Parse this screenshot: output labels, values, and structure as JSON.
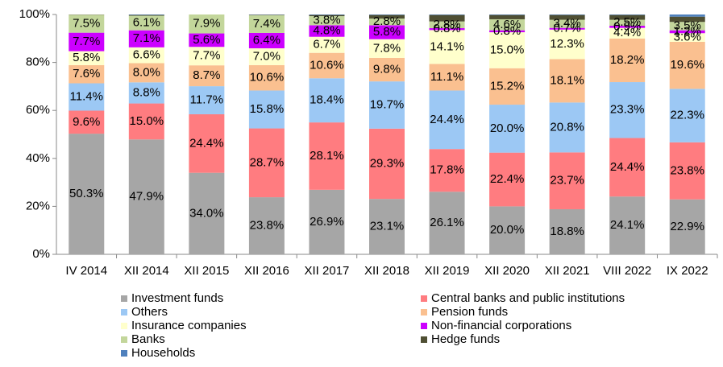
{
  "chart_data": {
    "type": "stacked_bar",
    "categories": [
      "IV 2014",
      "XII 2014",
      "XII 2015",
      "XII 2016",
      "XII 2017",
      "XII 2018",
      "XII 2019",
      "XII 2020",
      "XII 2021",
      "VIII 2022",
      "IX 2022"
    ],
    "ylim": [
      0,
      100
    ],
    "yticks": [
      {
        "value": 0,
        "label": "0%"
      },
      {
        "value": 20,
        "label": "20%"
      },
      {
        "value": 40,
        "label": "40%"
      },
      {
        "value": 60,
        "label": "60%"
      },
      {
        "value": 80,
        "label": "80%"
      },
      {
        "value": 100,
        "label": "100%"
      }
    ],
    "series": [
      {
        "name": "Investment funds",
        "color": "#a6a6a6",
        "values": [
          50.3,
          47.9,
          34.0,
          23.8,
          26.9,
          23.1,
          26.1,
          20.0,
          18.8,
          24.1,
          22.9
        ],
        "value_labels": [
          "50.3%",
          "47.9%",
          "34.0%",
          "23.8%",
          "26.9%",
          "23.1%",
          "26.1%",
          "20.0%",
          "18.8%",
          "24.1%",
          "22.9%"
        ]
      },
      {
        "name": "Central banks and public institutions",
        "color": "#ff7c80",
        "values": [
          9.6,
          15.0,
          24.4,
          28.7,
          28.1,
          29.3,
          17.8,
          22.4,
          23.7,
          24.4,
          23.8
        ],
        "value_labels": [
          "9.6%",
          "15.0%",
          "24.4%",
          "28.7%",
          "28.1%",
          "29.3%",
          "17.8%",
          "22.4%",
          "23.7%",
          "24.4%",
          "23.8%"
        ]
      },
      {
        "name": "Others",
        "color": "#9cc8f4",
        "values": [
          11.4,
          8.8,
          11.7,
          15.8,
          18.4,
          19.7,
          24.4,
          20.0,
          20.8,
          23.3,
          22.3
        ],
        "value_labels": [
          "11.4%",
          "8.8%",
          "11.7%",
          "15.8%",
          "18.4%",
          "19.7%",
          "24.4%",
          "20.0%",
          "20.8%",
          "23.3%",
          "22.3%"
        ]
      },
      {
        "name": "Pension funds",
        "color": "#fac090",
        "values": [
          7.6,
          8.0,
          8.7,
          10.6,
          10.6,
          9.8,
          11.1,
          15.2,
          18.1,
          18.2,
          19.6
        ],
        "value_labels": [
          "7.6%",
          "8.0%",
          "8.7%",
          "10.6%",
          "10.6%",
          "9.8%",
          "11.1%",
          "15.2%",
          "18.1%",
          "18.2%",
          "19.6%"
        ]
      },
      {
        "name": "Insurance companies",
        "color": "#ffffcc",
        "values": [
          5.8,
          6.6,
          7.7,
          7.0,
          6.7,
          7.8,
          14.1,
          15.0,
          12.3,
          4.4,
          3.6
        ],
        "value_labels": [
          "5.8%",
          "6.6%",
          "7.7%",
          "7.0%",
          "6.7%",
          "7.8%",
          "14.1%",
          "15.0%",
          "12.3%",
          "4.4%",
          "3.6%"
        ]
      },
      {
        "name": "Non-financial corporations",
        "color": "#cc00ff",
        "values": [
          7.7,
          7.1,
          5.6,
          6.4,
          4.8,
          5.8,
          0.8,
          0.8,
          0.7,
          0.9,
          1.2
        ],
        "value_labels": [
          "7.7%",
          "7.1%",
          "5.6%",
          "6.4%",
          "4.8%",
          "5.8%",
          "0.8%",
          "0.8%",
          "0.7%",
          "0.9%",
          "1.2%"
        ]
      },
      {
        "name": "Banks",
        "color": "#c3d69b",
        "values": [
          7.5,
          6.1,
          7.9,
          7.4,
          3.8,
          2.8,
          2.8,
          4.6,
          3.4,
          2.5,
          3.5
        ],
        "value_labels": [
          "7.5%",
          "6.1%",
          "7.9%",
          "7.4%",
          "3.8%",
          "2.8%",
          "2.8%",
          "4.6%",
          "3.4%",
          "2.5%",
          "3.5%"
        ]
      },
      {
        "name": "Hedge funds",
        "color": "#4f4f33",
        "values": [
          0.1,
          0.3,
          0.0,
          0.2,
          0.5,
          1.5,
          2.7,
          1.8,
          2.0,
          2.0,
          2.2
        ]
      },
      {
        "name": "Households",
        "color": "#4f81bd",
        "values": [
          0.0,
          0.2,
          0.0,
          0.1,
          0.2,
          0.2,
          0.2,
          0.2,
          0.2,
          0.2,
          0.9
        ]
      }
    ]
  }
}
